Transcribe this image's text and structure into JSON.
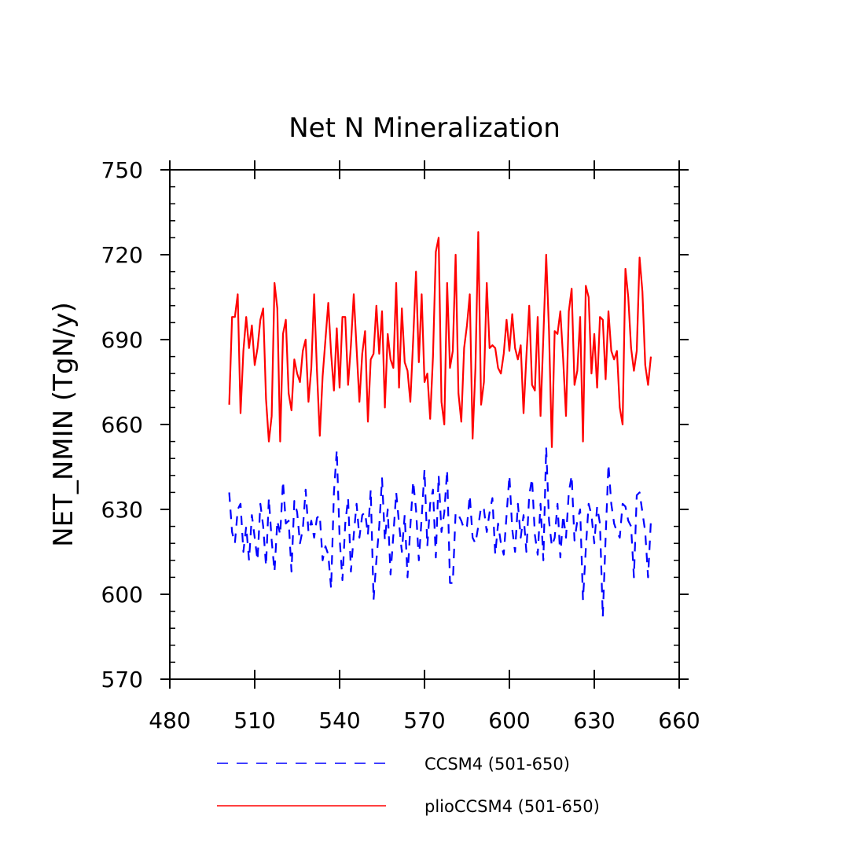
{
  "chart_data": {
    "type": "line",
    "title": "Net N Mineralization",
    "xlabel": "",
    "ylabel": "NET_NMIN   (TgN/y)",
    "xlim": [
      480,
      660
    ],
    "ylim": [
      570,
      750
    ],
    "xticks": [
      480,
      510,
      540,
      570,
      600,
      630,
      660
    ],
    "yticks": [
      570,
      600,
      630,
      660,
      690,
      720,
      750
    ],
    "legend_position": "bottom",
    "x_start": 501,
    "x_step": 1,
    "series": [
      {
        "name": "CCSM4 (501-650)",
        "color": "#0000ff",
        "style": "dashed",
        "values": [
          636,
          622,
          618,
          630,
          632,
          615,
          624,
          612,
          628,
          620,
          612,
          632,
          624,
          610,
          634,
          619,
          608,
          626,
          621,
          640,
          625,
          626,
          608,
          633,
          629,
          618,
          623,
          637,
          622,
          626,
          620,
          627,
          628,
          612,
          617,
          614,
          602,
          636,
          651,
          620,
          605,
          625,
          634,
          608,
          621,
          632,
          620,
          628,
          629,
          621,
          637,
          598,
          612,
          624,
          641,
          619,
          630,
          607,
          621,
          636,
          625,
          615,
          628,
          606,
          624,
          640,
          630,
          612,
          627,
          644,
          617,
          632,
          637,
          613,
          642,
          622,
          629,
          644,
          604,
          604,
          629,
          628,
          626,
          623,
          624,
          635,
          620,
          618,
          624,
          631,
          630,
          622,
          629,
          634,
          614,
          625,
          618,
          614,
          628,
          642,
          623,
          615,
          632,
          620,
          628,
          615,
          635,
          641,
          621,
          614,
          632,
          612,
          652,
          626,
          617,
          620,
          632,
          613,
          628,
          620,
          636,
          642,
          619,
          626,
          630,
          598,
          616,
          632,
          628,
          618,
          631,
          625,
          592,
          620,
          646,
          632,
          625,
          622,
          620,
          632,
          631,
          626,
          624,
          606,
          635,
          636,
          629,
          622,
          606,
          626
        ]
      },
      {
        "name": "plioCCSM4 (501-650)",
        "color": "#ff0000",
        "style": "solid",
        "values": [
          667,
          698,
          698,
          706,
          664,
          686,
          698,
          687,
          695,
          681,
          687,
          697,
          701,
          669,
          654,
          663,
          710,
          701,
          654,
          692,
          697,
          671,
          665,
          683,
          678,
          675,
          686,
          690,
          668,
          680,
          706,
          679,
          656,
          677,
          690,
          703,
          685,
          672,
          694,
          673,
          698,
          698,
          674,
          688,
          706,
          687,
          668,
          685,
          693,
          661,
          683,
          685,
          702,
          685,
          700,
          666,
          692,
          683,
          680,
          710,
          673,
          701,
          682,
          679,
          668,
          690,
          714,
          682,
          706,
          675,
          678,
          662,
          684,
          721,
          726,
          668,
          660,
          710,
          680,
          686,
          720,
          671,
          661,
          687,
          695,
          706,
          655,
          680,
          728,
          667,
          675,
          710,
          687,
          688,
          687,
          680,
          678,
          685,
          697,
          686,
          699,
          687,
          683,
          688,
          664,
          684,
          702,
          674,
          672,
          698,
          663,
          691,
          720,
          693,
          652,
          693,
          692,
          700,
          683,
          663,
          700,
          708,
          674,
          679,
          698,
          654,
          709,
          705,
          678,
          692,
          673,
          698,
          697,
          676,
          700,
          686,
          683,
          686,
          666,
          660,
          715,
          705,
          687,
          679,
          686,
          719,
          707,
          681,
          674,
          684
        ]
      }
    ]
  }
}
